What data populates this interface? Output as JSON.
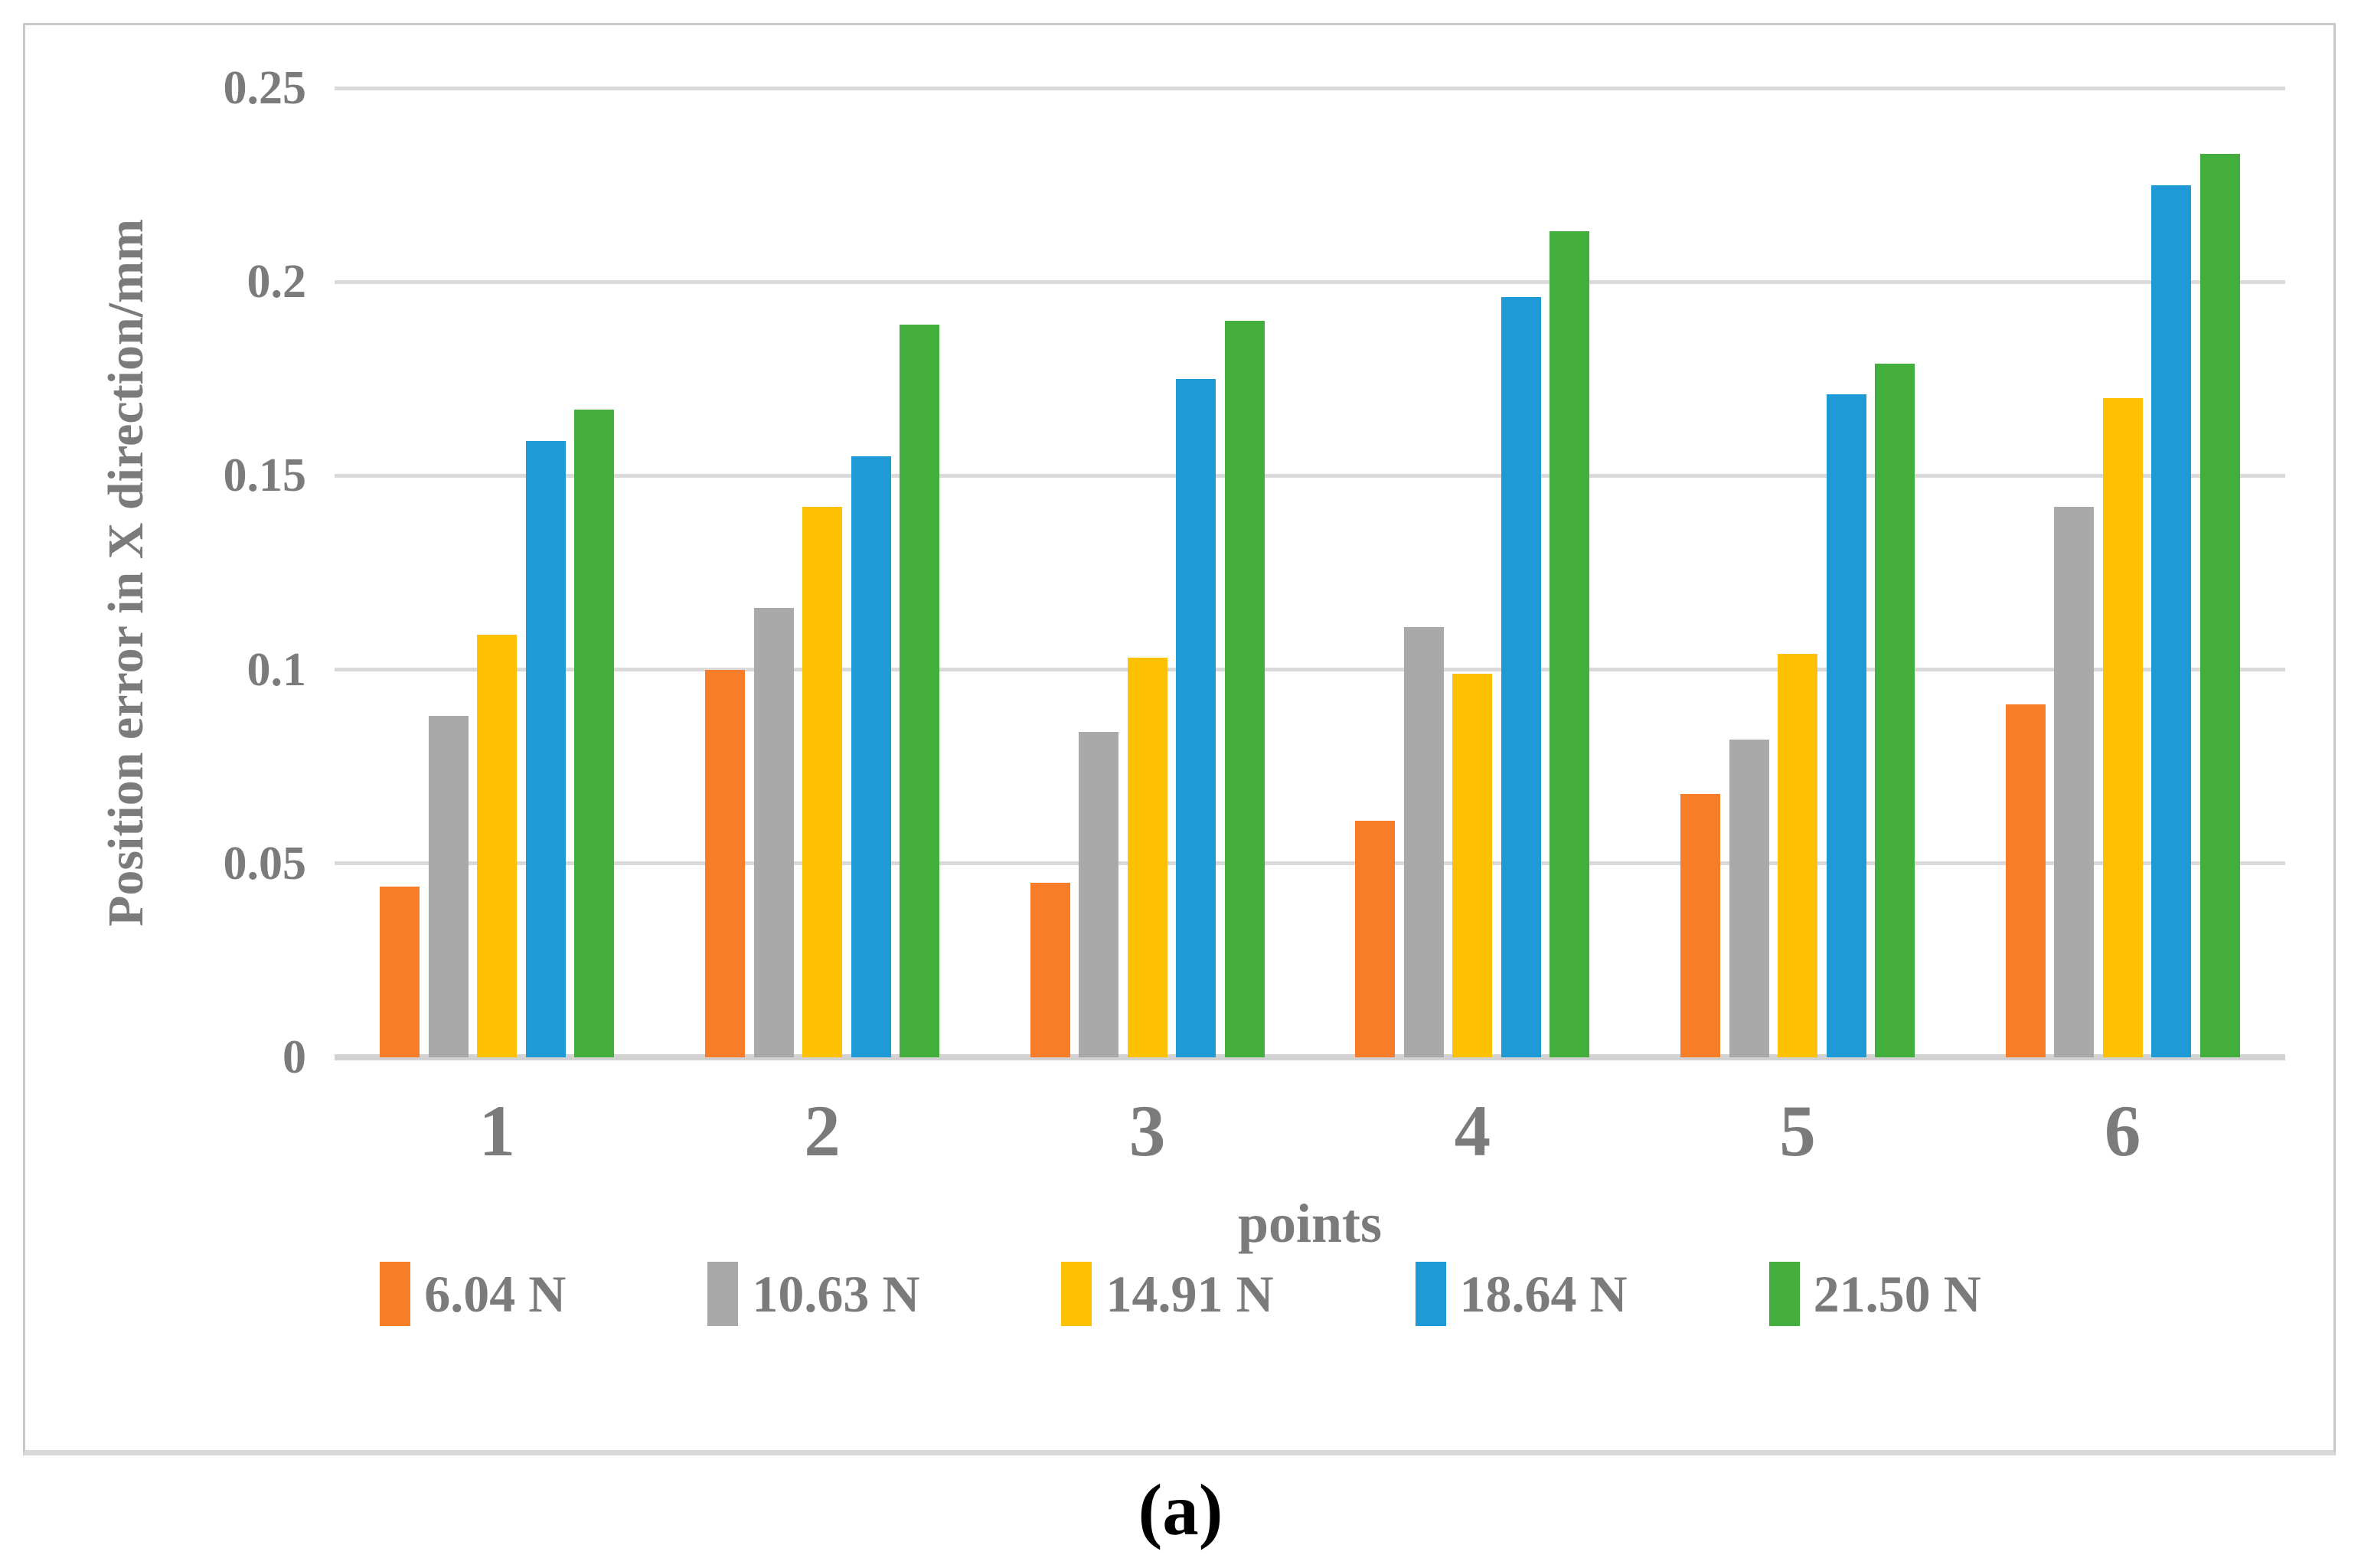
{
  "figure": {
    "caption": "(a)"
  },
  "chart_data": {
    "type": "bar",
    "title": "",
    "categories": [
      "1",
      "2",
      "3",
      "4",
      "5",
      "6"
    ],
    "series": [
      {
        "name": "6.04 N",
        "color": "#f87d28",
        "values": [
          0.044,
          0.1,
          0.045,
          0.061,
          0.068,
          0.091
        ]
      },
      {
        "name": "10.63 N",
        "color": "#a9a9a9",
        "values": [
          0.088,
          0.116,
          0.084,
          0.111,
          0.082,
          0.142
        ]
      },
      {
        "name": "14.91 N",
        "color": "#ffc103",
        "values": [
          0.109,
          0.142,
          0.103,
          0.099,
          0.104,
          0.17
        ]
      },
      {
        "name": "18.64 N",
        "color": "#1e9bd7",
        "values": [
          0.159,
          0.155,
          0.175,
          0.196,
          0.171,
          0.225
        ]
      },
      {
        "name": "21.50 N",
        "color": "#43ae3b",
        "values": [
          0.167,
          0.189,
          0.19,
          0.213,
          0.179,
          0.233
        ]
      }
    ],
    "xlabel": "points",
    "ylabel": "Position error in X direction/mm",
    "ylim": [
      0,
      0.25
    ],
    "ytick_step": 0.05,
    "ytick_labels": [
      "0",
      "0.05",
      "0.1",
      "0.15",
      "0.2",
      "0.25"
    ],
    "grid": true,
    "legend_position": "bottom",
    "gridline_color": "#dadada",
    "text_color": "#7b7b7b"
  }
}
